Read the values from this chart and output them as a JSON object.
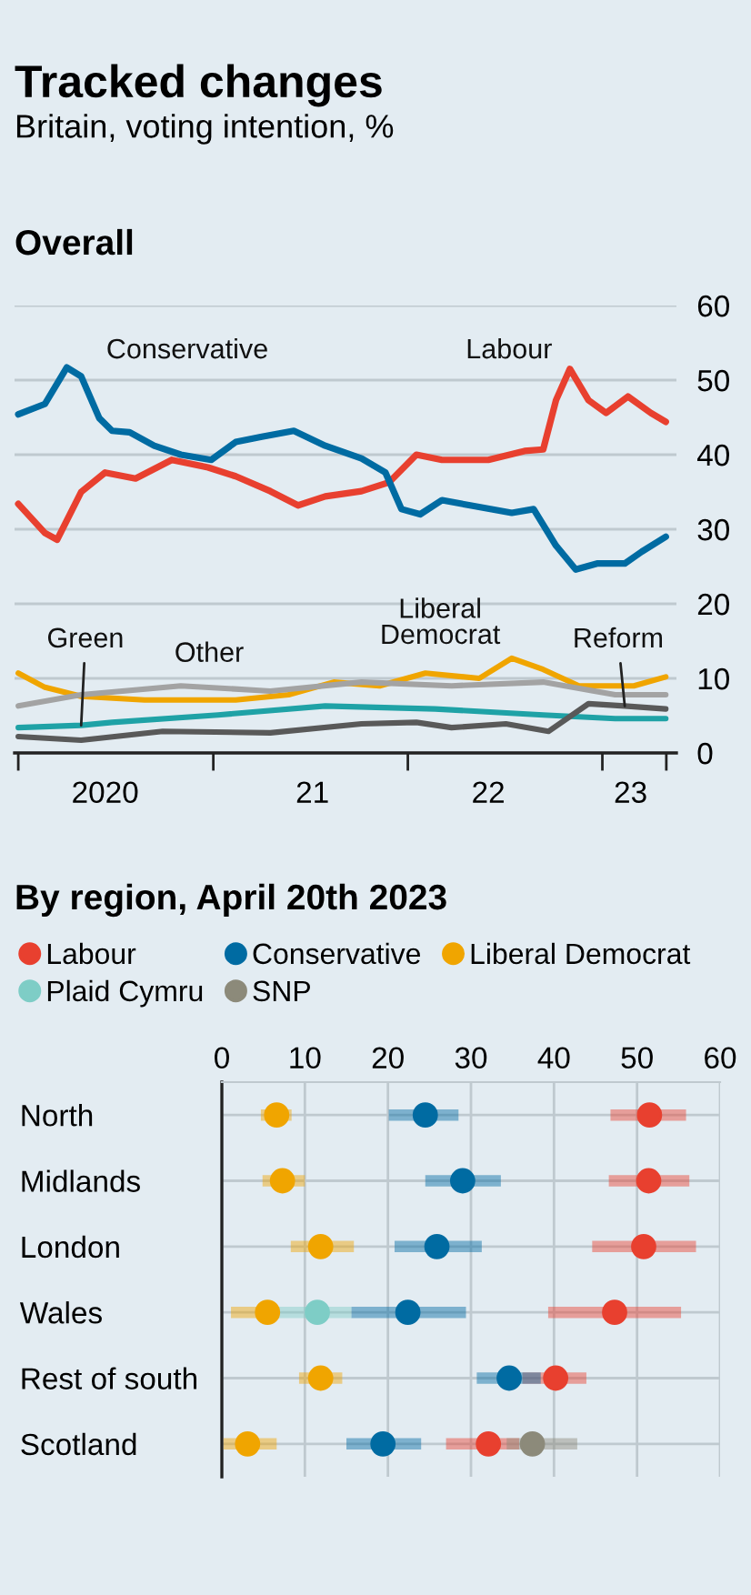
{
  "chart_data": [
    {
      "type": "line",
      "title": "Tracked changes",
      "subtitle": "Britain, voting intention, %",
      "annotations": [
        "Overall"
      ],
      "series": [
        {
          "name": "Labour",
          "color": "#e8402f",
          "x": [
            "2020-01-01",
            "2020-02-20",
            "2020-03-14",
            "2020-04-28",
            "2020-06-12",
            "2020-08-08",
            "2020-10-15",
            "2020-12-22",
            "2021-02-12",
            "2021-04-18",
            "2021-06-09",
            "2021-07-30",
            "2021-10-06",
            "2021-11-27",
            "2022-01-17",
            "2022-03-06",
            "2022-06-01",
            "2022-08-08",
            "2022-09-12",
            "2022-10-06",
            "2022-11-01",
            "2022-12-06",
            "2023-01-08",
            "2023-02-18",
            "2023-04-02",
            "2023-04-30"
          ],
          "values": [
            33.4,
            29.5,
            28.6,
            35,
            37.6,
            36.8,
            39.3,
            38.3,
            37.1,
            35.1,
            33.2,
            34.4,
            35.1,
            36.3,
            40,
            39.3,
            39.3,
            40.5,
            40.7,
            47.3,
            51.5,
            47.3,
            45.6,
            47.8,
            45.6,
            44.4
          ]
        },
        {
          "name": "Conservative",
          "color": "#006ba2",
          "x": [
            "2020-01-01",
            "2020-02-20",
            "2020-04-01",
            "2020-04-28",
            "2020-06-01",
            "2020-06-25",
            "2020-07-28",
            "2020-09-12",
            "2020-11-01",
            "2020-12-28",
            "2021-02-12",
            "2021-04-02",
            "2021-06-01",
            "2021-07-30",
            "2021-10-06",
            "2021-11-20",
            "2021-12-20",
            "2022-01-24",
            "2022-03-06",
            "2022-04-28",
            "2022-07-15",
            "2022-08-25",
            "2022-10-06",
            "2022-11-12",
            "2022-12-22",
            "2023-02-12",
            "2023-03-16",
            "2023-04-30"
          ],
          "values": [
            45.4,
            46.8,
            51.7,
            50.5,
            44.9,
            43.2,
            43,
            41.2,
            40,
            39.3,
            41.7,
            42.4,
            43.2,
            41.2,
            39.5,
            37.6,
            32.7,
            32,
            33.9,
            33.2,
            32.2,
            32.7,
            27.8,
            24.6,
            25.4,
            25.4,
            27,
            29
          ]
        },
        {
          "name": "Liberal Democrat",
          "color": "#f0a500",
          "x": [
            "2020-01-01",
            "2020-02-20",
            "2020-04-28",
            "2020-08-25",
            "2021-02-12",
            "2021-05-22",
            "2021-08-15",
            "2021-11-09",
            "2022-02-03",
            "2022-05-15",
            "2022-07-15",
            "2022-09-12",
            "2022-11-18",
            "2023-03-01",
            "2023-04-30"
          ],
          "values": [
            10.7,
            8.8,
            7.6,
            7.1,
            7.1,
            7.8,
            9.5,
            9,
            10.7,
            10,
            12.7,
            11.2,
            9,
            9,
            10.2
          ]
        },
        {
          "name": "Green",
          "color": "#1fa2a6",
          "x": [
            "2020-01-01",
            "2020-04-28",
            "2020-06-25",
            "2021-01-10",
            "2021-07-30",
            "2022-02-21",
            "2022-09-12",
            "2023-01-25",
            "2023-04-30"
          ],
          "values": [
            3.4,
            3.7,
            4.1,
            5.1,
            6.3,
            5.9,
            5.1,
            4.6,
            4.6
          ]
        },
        {
          "name": "Other",
          "color": "#a3a3a3",
          "x": [
            "2020-01-01",
            "2020-04-28",
            "2020-11-01",
            "2021-04-18",
            "2021-10-06",
            "2022-03-24",
            "2022-09-12",
            "2023-01-25",
            "2023-04-30"
          ],
          "values": [
            6.3,
            7.8,
            9,
            8.3,
            9.5,
            9,
            9.5,
            7.8,
            7.8
          ]
        },
        {
          "name": "Reform",
          "color": "#595959",
          "x": [
            "2020-01-01",
            "2020-04-28",
            "2020-09-28",
            "2021-04-18",
            "2021-10-06",
            "2022-01-17",
            "2022-03-24",
            "2022-07-04",
            "2022-09-22",
            "2022-12-06",
            "2023-02-12",
            "2023-04-30"
          ],
          "values": [
            2.2,
            1.7,
            2.9,
            2.7,
            3.9,
            4.1,
            3.4,
            3.9,
            2.9,
            6.6,
            6.3,
            5.9
          ]
        }
      ],
      "xlim": [
        "2019-12-25",
        "2023-05-20"
      ],
      "xticks": [
        {
          "value": "2020-01-01",
          "label": null
        },
        {
          "value": "2020-06-12",
          "label": "2020"
        },
        {
          "value": "2021-01-01",
          "label": null
        },
        {
          "value": "2021-07-06",
          "label": "21"
        },
        {
          "value": "2022-01-01",
          "label": null
        },
        {
          "value": "2022-06-01",
          "label": "22"
        },
        {
          "value": "2023-01-01",
          "label": null
        },
        {
          "value": "2023-02-23",
          "label": "23"
        },
        {
          "value": "2023-05-01",
          "label": null
        }
      ],
      "ylim": [
        0,
        60
      ],
      "yticks": [
        0,
        10,
        20,
        30,
        40,
        50,
        60
      ],
      "grid": "y",
      "line_style": "solid"
    },
    {
      "type": "scatter",
      "title": "By region, April 20th 2023",
      "orientation": "horizontal",
      "categories": [
        "North",
        "Midlands",
        "London",
        "Wales",
        "Rest of south",
        "Scotland"
      ],
      "series": [
        {
          "name": "Labour",
          "color": "#e8402f",
          "values": [
            51.5,
            51.4,
            50.8,
            47.3,
            40.2,
            32.1
          ],
          "errors": [
            [
              46.8,
              55.9
            ],
            [
              46.6,
              56.3
            ],
            [
              44.6,
              57.1
            ],
            [
              39.3,
              55.3
            ],
            [
              36.2,
              43.9
            ],
            [
              27,
              35.8
            ]
          ]
        },
        {
          "name": "Conservative",
          "color": "#006ba2",
          "values": [
            24.5,
            29,
            25.9,
            22.4,
            34.6,
            19.4
          ],
          "errors": [
            [
              20.1,
              28.5
            ],
            [
              24.5,
              33.6
            ],
            [
              20.8,
              31.3
            ],
            [
              15.6,
              29.4
            ],
            [
              30.7,
              38.4
            ],
            [
              15,
              24
            ]
          ]
        },
        {
          "name": "Liberal Democrat",
          "color": "#f0a500",
          "values": [
            6.6,
            7.3,
            11.9,
            5.5,
            11.9,
            3.1
          ],
          "errors": [
            [
              4.7,
              8.4
            ],
            [
              4.9,
              10
            ],
            [
              8.3,
              15.9
            ],
            [
              1.1,
              6.8
            ],
            [
              9.3,
              14.5
            ],
            [
              0.2,
              6.6
            ]
          ]
        },
        {
          "name": "Plaid Cymru",
          "color": "#7ecdc6",
          "values": [
            null,
            null,
            null,
            11.5,
            null,
            null
          ],
          "errors": [
            null,
            null,
            null,
            [
              6.8,
              15.6
            ],
            null,
            null
          ]
        },
        {
          "name": "SNP",
          "color": "#8c8a7a",
          "values": [
            null,
            null,
            null,
            null,
            null,
            37.4
          ],
          "errors": [
            null,
            null,
            null,
            null,
            null,
            [
              34.3,
              42.8
            ]
          ]
        }
      ],
      "xlim": [
        0,
        60
      ],
      "xticks": [
        0,
        10,
        20,
        30,
        40,
        50,
        60
      ],
      "grid": true,
      "legend": "top",
      "marker": "circle"
    }
  ]
}
